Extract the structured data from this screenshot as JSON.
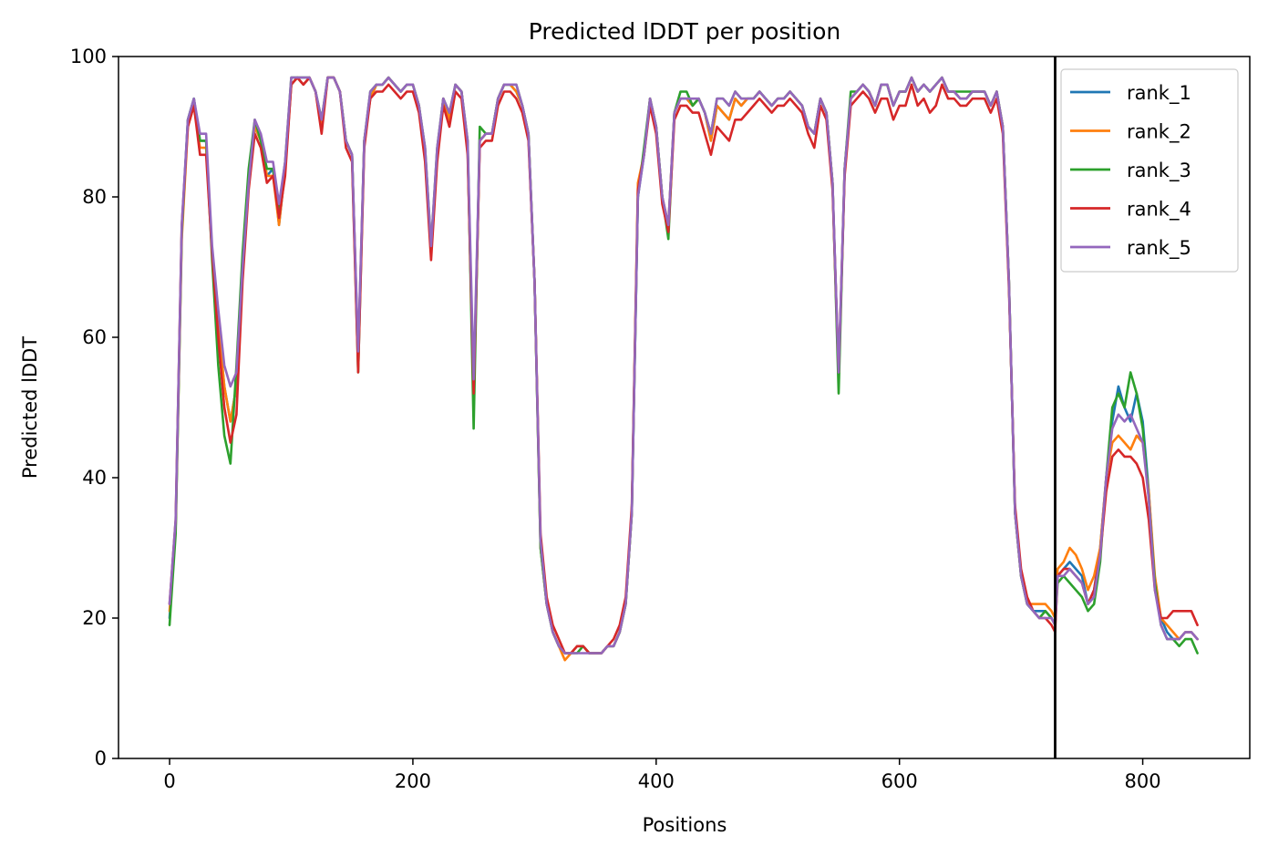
{
  "chart_data": {
    "type": "line",
    "title": "Predicted lDDT per position",
    "xlabel": "Positions",
    "ylabel": "Predicted lDDT",
    "xlim": [
      -42,
      888
    ],
    "ylim": [
      0,
      100
    ],
    "x_ticks": [
      0,
      200,
      400,
      600,
      800
    ],
    "x_tick_labels": [
      "0",
      "200",
      "400",
      "600",
      "800"
    ],
    "y_ticks": [
      0,
      20,
      40,
      60,
      80,
      100
    ],
    "y_tick_labels": [
      "0",
      "20",
      "40",
      "60",
      "80",
      "100"
    ],
    "grid": false,
    "legend_position": "top-right",
    "vertical_line_x": 728,
    "x": [
      0,
      5,
      10,
      15,
      20,
      25,
      30,
      35,
      40,
      45,
      50,
      55,
      60,
      65,
      70,
      75,
      80,
      85,
      90,
      95,
      100,
      105,
      110,
      115,
      120,
      125,
      130,
      135,
      140,
      145,
      150,
      155,
      160,
      165,
      170,
      175,
      180,
      185,
      190,
      195,
      200,
      205,
      210,
      215,
      220,
      225,
      230,
      235,
      240,
      245,
      250,
      255,
      260,
      265,
      270,
      275,
      280,
      285,
      290,
      295,
      300,
      305,
      310,
      315,
      320,
      325,
      330,
      335,
      340,
      345,
      350,
      355,
      360,
      365,
      370,
      375,
      380,
      385,
      390,
      395,
      400,
      405,
      410,
      415,
      420,
      425,
      430,
      435,
      440,
      445,
      450,
      455,
      460,
      465,
      470,
      475,
      480,
      485,
      490,
      495,
      500,
      505,
      510,
      515,
      520,
      525,
      530,
      535,
      540,
      545,
      550,
      555,
      560,
      565,
      570,
      575,
      580,
      585,
      590,
      595,
      600,
      605,
      610,
      615,
      620,
      625,
      630,
      635,
      640,
      645,
      650,
      655,
      660,
      665,
      670,
      675,
      680,
      685,
      690,
      695,
      700,
      705,
      710,
      715,
      720,
      725,
      728,
      730,
      735,
      740,
      745,
      750,
      755,
      760,
      765,
      770,
      775,
      780,
      785,
      790,
      795,
      800,
      805,
      810,
      815,
      820,
      825,
      830,
      835,
      840,
      845
    ],
    "series": [
      {
        "name": "rank_1",
        "color": "#1f77b4",
        "values": [
          20,
          33,
          75,
          91,
          94,
          88,
          88,
          72,
          62,
          53,
          48,
          53,
          70,
          82,
          90,
          88,
          83,
          84,
          76,
          84,
          96,
          97,
          96,
          97,
          95,
          90,
          97,
          97,
          95,
          88,
          86,
          57,
          88,
          94,
          96,
          96,
          97,
          96,
          95,
          96,
          96,
          93,
          86,
          72,
          86,
          94,
          91,
          96,
          95,
          87,
          51,
          88,
          89,
          89,
          94,
          96,
          96,
          95,
          93,
          89,
          68,
          30,
          22,
          18,
          16,
          15,
          15,
          16,
          16,
          15,
          15,
          15,
          16,
          16,
          18,
          22,
          35,
          80,
          86,
          94,
          90,
          80,
          76,
          92,
          94,
          94,
          93,
          94,
          92,
          88,
          93,
          92,
          91,
          94,
          93,
          94,
          94,
          95,
          94,
          93,
          94,
          94,
          95,
          94,
          93,
          90,
          89,
          94,
          92,
          82,
          54,
          84,
          94,
          95,
          96,
          95,
          93,
          96,
          96,
          93,
          95,
          95,
          97,
          95,
          96,
          95,
          96,
          97,
          95,
          95,
          94,
          94,
          95,
          95,
          95,
          93,
          95,
          90,
          68,
          35,
          26,
          22,
          21,
          21,
          21,
          20,
          19,
          26,
          27,
          28,
          27,
          26,
          22,
          24,
          30,
          40,
          48,
          53,
          50,
          48,
          52,
          48,
          38,
          25,
          20,
          18,
          17,
          17,
          18,
          18,
          17
        ]
      },
      {
        "name": "rank_2",
        "color": "#ff7f0e",
        "values": [
          21,
          33,
          74,
          90,
          93,
          87,
          87,
          72,
          62,
          53,
          48,
          53,
          70,
          82,
          90,
          88,
          83,
          83,
          76,
          84,
          96,
          97,
          96,
          97,
          95,
          90,
          97,
          97,
          95,
          88,
          86,
          57,
          88,
          94,
          96,
          96,
          97,
          96,
          95,
          96,
          96,
          93,
          86,
          72,
          86,
          94,
          91,
          96,
          95,
          87,
          51,
          88,
          89,
          89,
          94,
          96,
          96,
          95,
          93,
          89,
          68,
          30,
          22,
          18,
          16,
          14,
          15,
          16,
          16,
          15,
          15,
          15,
          16,
          16,
          18,
          22,
          35,
          82,
          86,
          94,
          90,
          80,
          76,
          92,
          94,
          94,
          93,
          94,
          92,
          88,
          93,
          92,
          91,
          94,
          93,
          94,
          94,
          95,
          94,
          93,
          94,
          94,
          95,
          94,
          93,
          90,
          89,
          94,
          92,
          82,
          54,
          84,
          94,
          95,
          96,
          95,
          93,
          96,
          96,
          93,
          95,
          95,
          97,
          95,
          96,
          95,
          96,
          97,
          95,
          95,
          94,
          94,
          95,
          95,
          95,
          93,
          95,
          90,
          68,
          35,
          26,
          22,
          22,
          22,
          22,
          21,
          20,
          27,
          28,
          30,
          29,
          27,
          24,
          26,
          30,
          40,
          45,
          46,
          45,
          44,
          46,
          45,
          38,
          26,
          20,
          19,
          18,
          17,
          18,
          18,
          17
        ]
      },
      {
        "name": "rank_3",
        "color": "#2ca02c",
        "values": [
          19,
          32,
          75,
          91,
          94,
          88,
          88,
          71,
          56,
          46,
          42,
          56,
          72,
          84,
          91,
          88,
          84,
          84,
          78,
          85,
          97,
          97,
          97,
          97,
          95,
          91,
          97,
          97,
          95,
          88,
          86,
          55,
          88,
          95,
          96,
          96,
          97,
          96,
          95,
          96,
          96,
          93,
          87,
          73,
          87,
          94,
          92,
          96,
          95,
          88,
          47,
          90,
          89,
          89,
          94,
          96,
          96,
          96,
          93,
          89,
          68,
          30,
          22,
          18,
          16,
          15,
          15,
          15,
          16,
          15,
          15,
          15,
          16,
          16,
          18,
          22,
          35,
          80,
          87,
          94,
          90,
          80,
          74,
          92,
          95,
          95,
          93,
          94,
          92,
          89,
          94,
          94,
          93,
          95,
          94,
          94,
          94,
          95,
          94,
          93,
          94,
          94,
          95,
          94,
          93,
          90,
          89,
          94,
          92,
          82,
          52,
          84,
          95,
          95,
          96,
          95,
          93,
          96,
          96,
          93,
          95,
          95,
          97,
          95,
          96,
          95,
          96,
          97,
          95,
          95,
          95,
          95,
          95,
          95,
          95,
          93,
          95,
          90,
          68,
          35,
          26,
          22,
          21,
          20,
          21,
          20,
          19,
          25,
          26,
          25,
          24,
          23,
          21,
          22,
          28,
          40,
          50,
          52,
          50,
          55,
          52,
          47,
          37,
          25,
          19,
          17,
          17,
          16,
          17,
          17,
          15
        ]
      },
      {
        "name": "rank_4",
        "color": "#d62728",
        "values": [
          22,
          34,
          76,
          90,
          93,
          86,
          86,
          72,
          60,
          50,
          45,
          49,
          68,
          81,
          89,
          87,
          82,
          83,
          77,
          83,
          96,
          97,
          96,
          97,
          95,
          89,
          97,
          97,
          95,
          87,
          85,
          55,
          87,
          94,
          95,
          95,
          96,
          95,
          94,
          95,
          95,
          92,
          85,
          71,
          85,
          93,
          90,
          95,
          94,
          86,
          52,
          87,
          88,
          88,
          93,
          95,
          95,
          94,
          92,
          88,
          68,
          32,
          23,
          19,
          17,
          15,
          15,
          16,
          16,
          15,
          15,
          15,
          16,
          17,
          19,
          23,
          36,
          81,
          86,
          93,
          89,
          79,
          75,
          91,
          93,
          93,
          92,
          92,
          89,
          86,
          90,
          89,
          88,
          91,
          91,
          92,
          93,
          94,
          93,
          92,
          93,
          93,
          94,
          93,
          92,
          89,
          87,
          93,
          91,
          81,
          55,
          83,
          93,
          94,
          95,
          94,
          92,
          94,
          94,
          91,
          93,
          93,
          96,
          93,
          94,
          92,
          93,
          96,
          94,
          94,
          93,
          93,
          94,
          94,
          94,
          92,
          94,
          89,
          67,
          36,
          27,
          23,
          21,
          20,
          20,
          19,
          18,
          26,
          27,
          27,
          26,
          25,
          22,
          24,
          29,
          38,
          43,
          44,
          43,
          43,
          42,
          40,
          34,
          24,
          20,
          20,
          21,
          21,
          21,
          21,
          19
        ]
      },
      {
        "name": "rank_5",
        "color": "#9467bd",
        "values": [
          22,
          34,
          76,
          91,
          94,
          89,
          89,
          73,
          64,
          56,
          53,
          55,
          70,
          82,
          91,
          89,
          85,
          85,
          79,
          85,
          97,
          97,
          97,
          97,
          95,
          91,
          97,
          97,
          95,
          88,
          86,
          58,
          88,
          95,
          96,
          96,
          97,
          96,
          95,
          96,
          96,
          93,
          87,
          73,
          87,
          94,
          92,
          96,
          95,
          88,
          54,
          88,
          89,
          89,
          94,
          96,
          96,
          96,
          93,
          89,
          68,
          31,
          22,
          18,
          16,
          15,
          15,
          15,
          15,
          15,
          15,
          15,
          16,
          16,
          18,
          22,
          35,
          80,
          86,
          94,
          90,
          80,
          76,
          92,
          94,
          94,
          94,
          94,
          92,
          89,
          94,
          94,
          93,
          95,
          94,
          94,
          94,
          95,
          94,
          93,
          94,
          94,
          95,
          94,
          93,
          90,
          89,
          94,
          92,
          82,
          55,
          84,
          94,
          95,
          96,
          95,
          93,
          96,
          96,
          93,
          95,
          95,
          97,
          95,
          96,
          95,
          96,
          97,
          95,
          95,
          94,
          94,
          95,
          95,
          95,
          93,
          95,
          90,
          68,
          35,
          26,
          22,
          21,
          20,
          20,
          20,
          19,
          26,
          26,
          27,
          26,
          25,
          22,
          23,
          29,
          40,
          47,
          49,
          48,
          49,
          47,
          45,
          37,
          24,
          19,
          17,
          17,
          17,
          18,
          18,
          17
        ]
      }
    ]
  }
}
